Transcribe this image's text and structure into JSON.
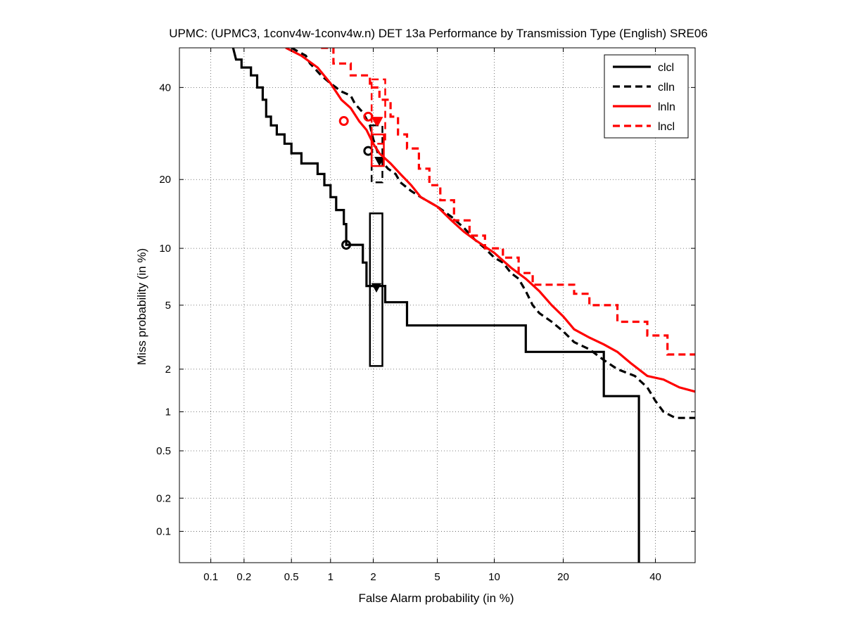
{
  "chart_data": {
    "type": "line",
    "title": "UPMC: (UPMC3, 1conv4w-1conv4w.n) DET 13a Performance by Transmission Type (English) SRE06",
    "xlabel": "False Alarm probability (in %)",
    "ylabel": "Miss probability (in %)",
    "scale": "normal-deviate (probit) on both axes",
    "xlim": [
      0.05,
      50
    ],
    "ylim": [
      0.05,
      50
    ],
    "x_ticks": [
      {
        "value": 0.1,
        "label": "0.1"
      },
      {
        "value": 0.2,
        "label": "0.2"
      },
      {
        "value": 0.5,
        "label": "0.5"
      },
      {
        "value": 1,
        "label": "1"
      },
      {
        "value": 2,
        "label": "2"
      },
      {
        "value": 5,
        "label": "5"
      },
      {
        "value": 10,
        "label": "10"
      },
      {
        "value": 20,
        "label": "20"
      },
      {
        "value": 40,
        "label": "40"
      }
    ],
    "y_ticks": [
      {
        "value": 0.1,
        "label": "0.1"
      },
      {
        "value": 0.2,
        "label": "0.2"
      },
      {
        "value": 0.5,
        "label": "0.5"
      },
      {
        "value": 1,
        "label": "1"
      },
      {
        "value": 2,
        "label": "2"
      },
      {
        "value": 5,
        "label": "5"
      },
      {
        "value": 10,
        "label": "10"
      },
      {
        "value": 20,
        "label": "20"
      },
      {
        "value": 40,
        "label": "40"
      }
    ],
    "grid": true,
    "legend_position": "top-right",
    "series": [
      {
        "name": "clcl",
        "color": "#000000",
        "dash": "solid",
        "points": [
          [
            0.16,
            50
          ],
          [
            0.17,
            47
          ],
          [
            0.19,
            47
          ],
          [
            0.19,
            45
          ],
          [
            0.23,
            45
          ],
          [
            0.23,
            43
          ],
          [
            0.26,
            43
          ],
          [
            0.26,
            40
          ],
          [
            0.29,
            40
          ],
          [
            0.29,
            37
          ],
          [
            0.31,
            37
          ],
          [
            0.31,
            33
          ],
          [
            0.34,
            33
          ],
          [
            0.34,
            31
          ],
          [
            0.38,
            31
          ],
          [
            0.38,
            29
          ],
          [
            0.44,
            29
          ],
          [
            0.44,
            27
          ],
          [
            0.5,
            27
          ],
          [
            0.5,
            25
          ],
          [
            0.6,
            25
          ],
          [
            0.6,
            23
          ],
          [
            0.8,
            23
          ],
          [
            0.8,
            21
          ],
          [
            0.9,
            21
          ],
          [
            0.9,
            19
          ],
          [
            1.0,
            19
          ],
          [
            1.0,
            17
          ],
          [
            1.1,
            17
          ],
          [
            1.1,
            15
          ],
          [
            1.25,
            15
          ],
          [
            1.25,
            13
          ],
          [
            1.3,
            13
          ],
          [
            1.3,
            10.4
          ],
          [
            1.7,
            10.4
          ],
          [
            1.7,
            8.5
          ],
          [
            1.8,
            8.5
          ],
          [
            1.8,
            6.4
          ],
          [
            2.4,
            6.4
          ],
          [
            2.4,
            5.2
          ],
          [
            3.3,
            5.2
          ],
          [
            3.3,
            3.8
          ],
          [
            14,
            3.8
          ],
          [
            14,
            2.6
          ],
          [
            28,
            2.6
          ],
          [
            28,
            1.3
          ],
          [
            36,
            1.3
          ],
          [
            36,
            0.05
          ]
        ],
        "actual_min_point": [
          1.3,
          10.4
        ],
        "min_dcf_point": [
          2.1,
          6.3
        ],
        "confidence_box": {
          "pfa": [
            1.9,
            2.3
          ],
          "pmiss": [
            2.1,
            14.5
          ]
        }
      },
      {
        "name": "clln",
        "color": "#000000",
        "dash": "dashed",
        "points": [
          [
            0.5,
            50
          ],
          [
            0.65,
            48
          ],
          [
            0.7,
            46
          ],
          [
            0.75,
            45
          ],
          [
            0.85,
            43
          ],
          [
            1.0,
            41
          ],
          [
            1.2,
            39
          ],
          [
            1.4,
            38
          ],
          [
            1.5,
            36
          ],
          [
            1.7,
            34
          ],
          [
            1.9,
            31
          ],
          [
            2.0,
            28
          ],
          [
            2.1,
            26
          ],
          [
            2.2,
            24
          ],
          [
            2.5,
            22
          ],
          [
            2.8,
            21
          ],
          [
            3.0,
            19.5
          ],
          [
            3.5,
            18
          ],
          [
            4.0,
            17
          ],
          [
            5.0,
            15.5
          ],
          [
            6.0,
            14
          ],
          [
            7.0,
            12.5
          ],
          [
            8.0,
            11
          ],
          [
            9.0,
            10
          ],
          [
            10,
            9
          ],
          [
            11,
            8.5
          ],
          [
            12,
            7.5
          ],
          [
            13,
            7
          ],
          [
            14,
            6
          ],
          [
            15,
            5
          ],
          [
            16,
            4.5
          ],
          [
            18,
            4
          ],
          [
            20,
            3.5
          ],
          [
            22,
            3
          ],
          [
            25,
            2.7
          ],
          [
            28,
            2.3
          ],
          [
            31,
            2
          ],
          [
            35,
            1.8
          ],
          [
            38,
            1.5
          ],
          [
            40,
            1.2
          ],
          [
            42,
            1.0
          ],
          [
            45,
            0.9
          ],
          [
            50,
            0.9
          ]
        ],
        "actual_min_point": [
          1.85,
          25.5
        ],
        "min_dcf_point": [
          2.2,
          23.5
        ],
        "confidence_box": {
          "pfa": [
            1.95,
            2.3
          ],
          "pmiss": [
            19.5,
            31
          ]
        }
      },
      {
        "name": "lnln",
        "color": "#ff0000",
        "dash": "solid",
        "points": [
          [
            0.45,
            50
          ],
          [
            0.6,
            48
          ],
          [
            0.8,
            45
          ],
          [
            1.0,
            41
          ],
          [
            1.2,
            37
          ],
          [
            1.4,
            35
          ],
          [
            1.6,
            32
          ],
          [
            1.8,
            30
          ],
          [
            2.0,
            27
          ],
          [
            2.2,
            25
          ],
          [
            2.6,
            23
          ],
          [
            3.0,
            21
          ],
          [
            3.5,
            19
          ],
          [
            4.0,
            17
          ],
          [
            5.0,
            15.5
          ],
          [
            6.0,
            13.5
          ],
          [
            7.0,
            12
          ],
          [
            8.0,
            11
          ],
          [
            10,
            9.5
          ],
          [
            12,
            8
          ],
          [
            14,
            7
          ],
          [
            16,
            6
          ],
          [
            18,
            5
          ],
          [
            20,
            4.3
          ],
          [
            22,
            3.6
          ],
          [
            25,
            3.2
          ],
          [
            28,
            2.9
          ],
          [
            31,
            2.6
          ],
          [
            34,
            2.2
          ],
          [
            38,
            1.8
          ],
          [
            42,
            1.7
          ],
          [
            46,
            1.5
          ],
          [
            50,
            1.4
          ]
        ],
        "actual_min_point": [
          1.25,
          32
        ],
        "min_dcf_point": [
          2.15,
          32
        ],
        "confidence_box": {
          "pfa": [
            1.95,
            2.35
          ],
          "pmiss": [
            22.5,
            29
          ]
        }
      },
      {
        "name": "lncl",
        "color": "#ff0000",
        "dash": "dashed",
        "points": [
          [
            0.85,
            50
          ],
          [
            1.05,
            50
          ],
          [
            1.05,
            46
          ],
          [
            1.4,
            46
          ],
          [
            1.4,
            43
          ],
          [
            1.9,
            43
          ],
          [
            1.9,
            40
          ],
          [
            2.2,
            40
          ],
          [
            2.2,
            37
          ],
          [
            2.6,
            37
          ],
          [
            2.6,
            33
          ],
          [
            2.9,
            33
          ],
          [
            2.9,
            29
          ],
          [
            3.3,
            29
          ],
          [
            3.3,
            26
          ],
          [
            3.9,
            26
          ],
          [
            3.9,
            22
          ],
          [
            4.5,
            22
          ],
          [
            4.5,
            19
          ],
          [
            5.2,
            19
          ],
          [
            5.2,
            16.5
          ],
          [
            6.2,
            16.5
          ],
          [
            6.2,
            13.5
          ],
          [
            7.5,
            13.5
          ],
          [
            7.5,
            11.5
          ],
          [
            9.0,
            11.5
          ],
          [
            9.0,
            10
          ],
          [
            11,
            10
          ],
          [
            11,
            9
          ],
          [
            13,
            9
          ],
          [
            13,
            7.5
          ],
          [
            15,
            7.5
          ],
          [
            15,
            6.5
          ],
          [
            22,
            6.5
          ],
          [
            22,
            5.8
          ],
          [
            25,
            5.8
          ],
          [
            25,
            5
          ],
          [
            31,
            5
          ],
          [
            31,
            4
          ],
          [
            38,
            4
          ],
          [
            38,
            3.3
          ],
          [
            43,
            3.3
          ],
          [
            43,
            2.5
          ],
          [
            50,
            2.5
          ]
        ],
        "actual_min_point": [
          1.85,
          33
        ],
        "min_dcf_point": [
          2.1,
          32
        ],
        "confidence_box": {
          "pfa": [
            1.95,
            2.4
          ],
          "pmiss": [
            27,
            42
          ]
        }
      }
    ]
  }
}
